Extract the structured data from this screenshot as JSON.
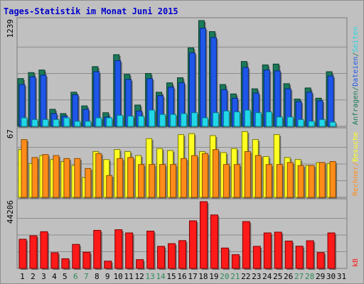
{
  "title": "Tages-Statistik im Monat Juni 2015",
  "colors": {
    "background": "#c0c0c0",
    "title": "#0000cc",
    "grid": "#8c8c8c",
    "weekday_label": "#000000",
    "weekend_label": "#2e8b57",
    "anfragen": "#1a7a5a",
    "dateien": "#1e56e8",
    "seiten": "#22d8e8",
    "besuche": "#ffff22",
    "rechner": "#ff8c1a",
    "kb": "#ff1a1a"
  },
  "chart_data": [
    {
      "type": "bar",
      "panel": "hits",
      "y_max_label": "1239",
      "ylim": [
        0,
        1239
      ],
      "grid": true,
      "legend_placement": "right (vertical)",
      "legend": [
        {
          "text": "Anfragen",
          "color": "#1a7a5a"
        },
        {
          "text": "/",
          "color": "#1a7a5a"
        },
        {
          "text": "Dateien",
          "color": "#1e56e8"
        },
        {
          "text": "/",
          "color": "#1a7a5a"
        },
        {
          "text": "Seiten",
          "color": "#22d8e8"
        }
      ],
      "categories": [
        "1",
        "2",
        "3",
        "4",
        "5",
        "6",
        "7",
        "8",
        "9",
        "10",
        "11",
        "12",
        "13",
        "14",
        "15",
        "16",
        "17",
        "18",
        "19",
        "20",
        "21",
        "22",
        "23",
        "24",
        "25",
        "26",
        "27",
        "28",
        "29",
        "30",
        "31"
      ],
      "series": [
        {
          "name": "Anfragen",
          "values": [
            560,
            630,
            660,
            200,
            150,
            400,
            240,
            700,
            160,
            840,
            610,
            250,
            620,
            400,
            510,
            570,
            920,
            1239,
            1110,
            490,
            380,
            760,
            440,
            720,
            730,
            500,
            320,
            450,
            330,
            640,
            0
          ]
        },
        {
          "name": "Dateien",
          "values": [
            490,
            580,
            600,
            150,
            120,
            370,
            200,
            640,
            110,
            770,
            550,
            180,
            560,
            360,
            460,
            510,
            860,
            1150,
            1040,
            430,
            330,
            690,
            390,
            660,
            650,
            440,
            290,
            400,
            300,
            590,
            0
          ]
        },
        {
          "name": "Seiten",
          "values": [
            100,
            80,
            80,
            80,
            100,
            60,
            60,
            100,
            100,
            130,
            120,
            120,
            190,
            140,
            140,
            150,
            160,
            100,
            160,
            180,
            170,
            190,
            160,
            170,
            110,
            110,
            80,
            60,
            80,
            50,
            0
          ]
        }
      ]
    },
    {
      "type": "bar",
      "panel": "visits",
      "y_max_label": "67",
      "ylim": [
        0,
        67
      ],
      "grid": true,
      "legend_placement": "right (vertical)",
      "legend": [
        {
          "text": "Rechner",
          "color": "#ff8c1a"
        },
        {
          "text": "/",
          "color": "#ff8c1a"
        },
        {
          "text": "Besuche",
          "color": "#ffff22"
        }
      ],
      "categories": [
        "1",
        "2",
        "3",
        "4",
        "5",
        "6",
        "7",
        "8",
        "9",
        "10",
        "11",
        "12",
        "13",
        "14",
        "15",
        "16",
        "17",
        "18",
        "19",
        "20",
        "21",
        "22",
        "23",
        "24",
        "25",
        "26",
        "27",
        "28",
        "29",
        "30",
        "31"
      ],
      "series": [
        {
          "name": "Besuche",
          "values": [
            48,
            34,
            42,
            38,
            36,
            32,
            20,
            46,
            38,
            48,
            46,
            42,
            59,
            49,
            47,
            63,
            64,
            46,
            62,
            45,
            49,
            66,
            58,
            41,
            63,
            40,
            38,
            32,
            35,
            34,
            0
          ]
        },
        {
          "name": "Rechner",
          "values": [
            58,
            40,
            43,
            42,
            39,
            39,
            29,
            44,
            22,
            39,
            40,
            33,
            33,
            33,
            33,
            39,
            42,
            44,
            48,
            33,
            33,
            46,
            42,
            33,
            33,
            35,
            32,
            32,
            35,
            36,
            0
          ]
        }
      ]
    },
    {
      "type": "bar",
      "panel": "kbytes",
      "y_max_label": "44206",
      "ylim": [
        0,
        44206
      ],
      "grid": true,
      "legend_placement": "right (vertical)",
      "legend": [
        {
          "text": "kB",
          "color": "#ff1a1a"
        }
      ],
      "categories": [
        "1",
        "2",
        "3",
        "4",
        "5",
        "6",
        "7",
        "8",
        "9",
        "10",
        "11",
        "12",
        "13",
        "14",
        "15",
        "16",
        "17",
        "18",
        "19",
        "20",
        "21",
        "22",
        "23",
        "24",
        "25",
        "26",
        "27",
        "28",
        "29",
        "30",
        "31"
      ],
      "series": [
        {
          "name": "kB",
          "values": [
            19300,
            21600,
            24300,
            10400,
            6400,
            15900,
            10700,
            25200,
            4800,
            25600,
            23500,
            5800,
            24700,
            14600,
            16400,
            18400,
            31500,
            44206,
            35400,
            13500,
            9100,
            31000,
            14600,
            23500,
            24000,
            18100,
            14700,
            18300,
            10500,
            23500,
            0
          ]
        }
      ]
    }
  ]
}
